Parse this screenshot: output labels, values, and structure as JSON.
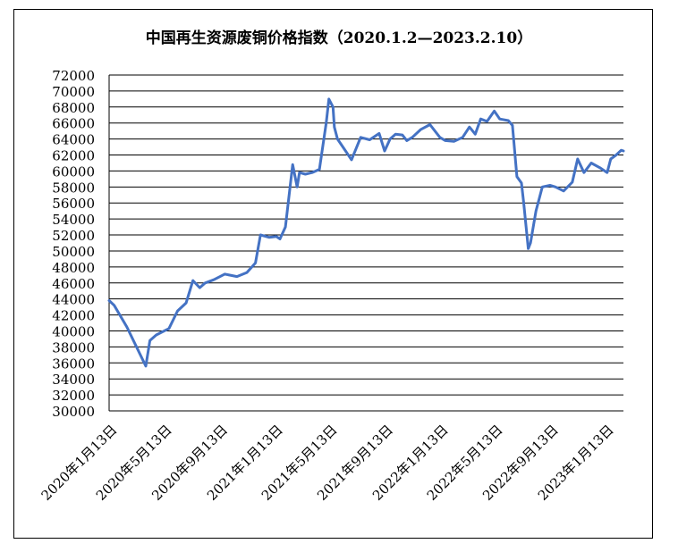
{
  "chart_data": {
    "type": "line",
    "title": "中国再生资源废铜价格指数（2020.1.2—2023.2.10）",
    "xlabel": "",
    "ylabel": "",
    "ylim": [
      30000,
      72000
    ],
    "yticks": [
      "30000",
      "32000",
      "34000",
      "36000",
      "38000",
      "40000",
      "42000",
      "44000",
      "46000",
      "48000",
      "50000",
      "52000",
      "54000",
      "56000",
      "58000",
      "60000",
      "62000",
      "64000",
      "66000",
      "68000",
      "70000",
      "72000"
    ],
    "xticks": [
      "2020年1月13日",
      "2020年5月13日",
      "2020年9月13日",
      "2021年1月13日",
      "2021年5月13日",
      "2021年9月13日",
      "2022年1月13日",
      "2022年5月13日",
      "2022年9月13日",
      "2023年1月13日"
    ],
    "grid": true,
    "line_color": "#4472C4",
    "series": [
      {
        "x": [
          "2020-01-02",
          "2020-01-13",
          "2020-02-10",
          "2020-03-23",
          "2020-04-01",
          "2020-04-15",
          "2020-05-13",
          "2020-06-01",
          "2020-06-20",
          "2020-07-05",
          "2020-07-20",
          "2020-08-01",
          "2020-08-20",
          "2020-09-13",
          "2020-10-10",
          "2020-11-01",
          "2020-11-20",
          "2020-12-01",
          "2020-12-20",
          "2021-01-05",
          "2021-01-13",
          "2021-01-25",
          "2021-02-10",
          "2021-02-20",
          "2021-02-25",
          "2021-03-10",
          "2021-03-25",
          "2021-04-10",
          "2021-04-25",
          "2021-05-01",
          "2021-05-10",
          "2021-05-13",
          "2021-05-20",
          "2021-06-01",
          "2021-06-20",
          "2021-07-10",
          "2021-07-30",
          "2021-08-20",
          "2021-09-01",
          "2021-09-13",
          "2021-09-25",
          "2021-10-10",
          "2021-10-20",
          "2021-11-01",
          "2021-11-20",
          "2021-12-10",
          "2022-01-01",
          "2022-01-13",
          "2022-02-01",
          "2022-02-20",
          "2022-03-07",
          "2022-03-20",
          "2022-04-01",
          "2022-04-15",
          "2022-05-01",
          "2022-05-13",
          "2022-06-01",
          "2022-06-10",
          "2022-06-20",
          "2022-06-30",
          "2022-07-05",
          "2022-07-15",
          "2022-07-20",
          "2022-08-01",
          "2022-08-15",
          "2022-09-01",
          "2022-09-13",
          "2022-10-01",
          "2022-10-20",
          "2022-11-01",
          "2022-11-15",
          "2022-12-01",
          "2022-12-20",
          "2023-01-05",
          "2023-01-13",
          "2023-01-25",
          "2023-02-05",
          "2023-02-10"
        ],
        "values": [
          43800,
          43200,
          40500,
          35600,
          38800,
          39500,
          40300,
          42500,
          43500,
          46300,
          45400,
          46000,
          46400,
          47100,
          46800,
          47300,
          48500,
          52000,
          51700,
          51800,
          51500,
          53000,
          60800,
          58000,
          59800,
          59600,
          59800,
          60200,
          66000,
          69000,
          68000,
          65500,
          64000,
          63000,
          61400,
          64200,
          63900,
          64700,
          62500,
          64000,
          64600,
          64500,
          63800,
          64200,
          65200,
          65800,
          64200,
          63800,
          63700,
          64200,
          65500,
          64600,
          66500,
          66200,
          67500,
          66500,
          66300,
          65700,
          59300,
          58500,
          56000,
          50300,
          51000,
          55000,
          58000,
          58200,
          58000,
          57500,
          58600,
          61500,
          59800,
          61000,
          60400,
          59800,
          61500,
          62000,
          62600,
          62500
        ]
      }
    ]
  }
}
